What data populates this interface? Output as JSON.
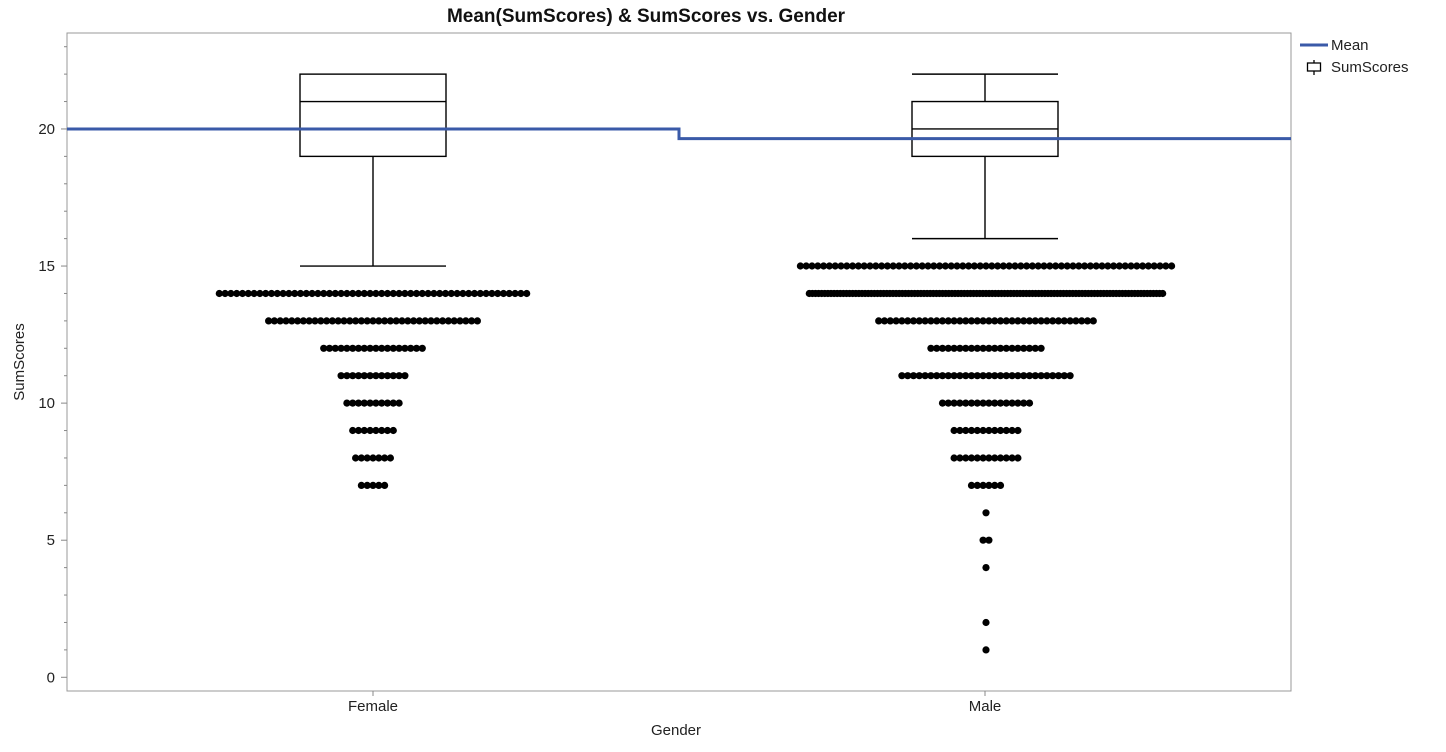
{
  "chart_data": {
    "type": "box",
    "title": "Mean(SumScores) & SumScores vs. Gender",
    "xlabel": "Gender",
    "ylabel": "SumScores",
    "categories": [
      "Female",
      "Male"
    ],
    "ylim": [
      -0.5,
      23.5
    ],
    "yticks": [
      0,
      5,
      10,
      15,
      20
    ],
    "grid": false,
    "legend_position": "top-right",
    "legend": [
      {
        "label": "Mean",
        "kind": "line"
      },
      {
        "label": "SumScores",
        "kind": "box"
      }
    ],
    "colors": {
      "mean_line": "#3a5aa8",
      "box": "#000000",
      "points": "#000000"
    },
    "mean": [
      {
        "category": "Female",
        "value": 20.0
      },
      {
        "category": "Male",
        "value": 19.65
      }
    ],
    "boxes": [
      {
        "category": "Female",
        "whisker_low": 15,
        "q1": 19,
        "median": 21,
        "q3": 22,
        "whisker_high": 22
      },
      {
        "category": "Male",
        "whisker_low": 16,
        "q1": 19,
        "median": 20,
        "q3": 21,
        "whisker_high": 22
      }
    ],
    "outliers": [
      {
        "category": "Female",
        "counts_by_value": [
          {
            "value": 14,
            "count": 54
          },
          {
            "value": 13,
            "count": 37
          },
          {
            "value": 12,
            "count": 18
          },
          {
            "value": 11,
            "count": 12
          },
          {
            "value": 10,
            "count": 10
          },
          {
            "value": 9,
            "count": 8
          },
          {
            "value": 8,
            "count": 7
          },
          {
            "value": 7,
            "count": 5
          }
        ]
      },
      {
        "category": "Male",
        "counts_by_value": [
          {
            "value": 15,
            "count": 65
          },
          {
            "value": 14,
            "count": 115
          },
          {
            "value": 13,
            "count": 38
          },
          {
            "value": 12,
            "count": 20
          },
          {
            "value": 11,
            "count": 30
          },
          {
            "value": 10,
            "count": 16
          },
          {
            "value": 9,
            "count": 12
          },
          {
            "value": 8,
            "count": 12
          },
          {
            "value": 7,
            "count": 6
          },
          {
            "value": 6,
            "count": 1
          },
          {
            "value": 5,
            "count": 2
          },
          {
            "value": 4,
            "count": 1
          },
          {
            "value": 2,
            "count": 1
          },
          {
            "value": 1,
            "count": 1
          }
        ]
      }
    ]
  }
}
